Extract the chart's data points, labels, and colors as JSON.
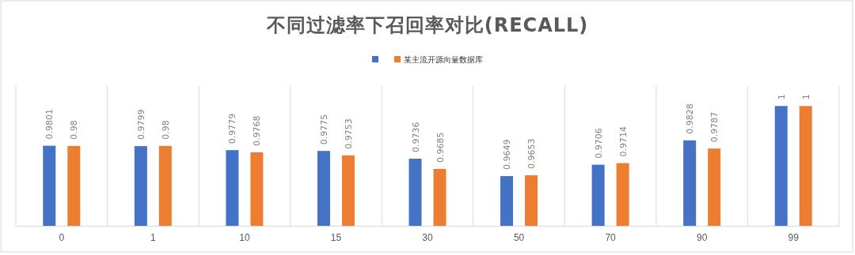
{
  "chart_data": {
    "type": "bar",
    "title": "不同过滤率下召回率对比(RECALL)",
    "categories": [
      "0",
      "1",
      "10",
      "15",
      "30",
      "50",
      "70",
      "90",
      "99"
    ],
    "series": [
      {
        "color": "#4472c4",
        "values": [
          0.9801,
          0.9799,
          0.9779,
          0.9775,
          0.9736,
          0.9649,
          0.9706,
          0.9828,
          1
        ]
      },
      {
        "name": "某主流开源向量数据库",
        "color": "#ed7d31",
        "values": [
          0.98,
          0.98,
          0.9768,
          0.9753,
          0.9685,
          0.9653,
          0.9714,
          0.9787,
          1
        ]
      }
    ],
    "ylim": [
      0.94,
      1.01
    ],
    "tick_labels": "x",
    "grid": "x",
    "legend": "top",
    "data_labels": true
  }
}
